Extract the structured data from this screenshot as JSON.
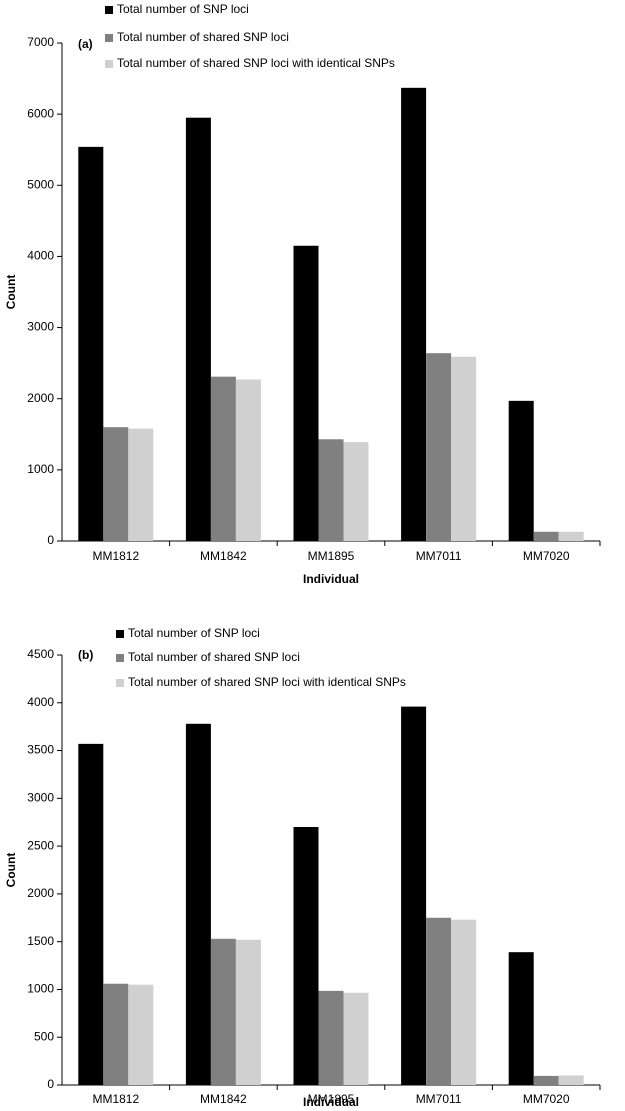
{
  "chart_data": [
    {
      "type": "bar",
      "annotation": "(a)",
      "y_label": "Count",
      "x_label": "Individual",
      "categories": [
        "MM1812",
        "MM1842",
        "MM1895",
        "MM7011",
        "MM7020"
      ],
      "series": [
        {
          "name": "Total number of SNP loci",
          "color": "#000000",
          "values": [
            5540,
            5950,
            4150,
            6370,
            1970
          ]
        },
        {
          "name": "Total number of shared SNP loci",
          "color": "#808080",
          "values": [
            1600,
            2310,
            1430,
            2640,
            130
          ]
        },
        {
          "name": "Total number of shared SNP loci with identical SNPs",
          "color": "#d0d0d0",
          "values": [
            1580,
            2270,
            1390,
            2590,
            130
          ]
        }
      ],
      "ylim": [
        0,
        7000
      ],
      "yticks": [
        0,
        1000,
        2000,
        3000,
        4000,
        5000,
        6000,
        7000
      ]
    },
    {
      "type": "bar",
      "annotation": "(b)",
      "y_label": "Count",
      "x_label": "Individual",
      "categories": [
        "MM1812",
        "MM1842",
        "MM1895",
        "MM7011",
        "MM7020"
      ],
      "series": [
        {
          "name": "Total number of SNP loci",
          "color": "#000000",
          "values": [
            3570,
            3780,
            2700,
            3960,
            1390
          ]
        },
        {
          "name": "Total number of shared SNP loci",
          "color": "#808080",
          "values": [
            1060,
            1530,
            985,
            1750,
            95
          ]
        },
        {
          "name": "Total number of shared SNP loci with identical SNPs",
          "color": "#d0d0d0",
          "values": [
            1050,
            1520,
            965,
            1730,
            100
          ]
        }
      ],
      "ylim": [
        0,
        4500
      ],
      "yticks": [
        0,
        500,
        1000,
        1500,
        2000,
        2500,
        3000,
        3500,
        4000,
        4500
      ]
    }
  ]
}
